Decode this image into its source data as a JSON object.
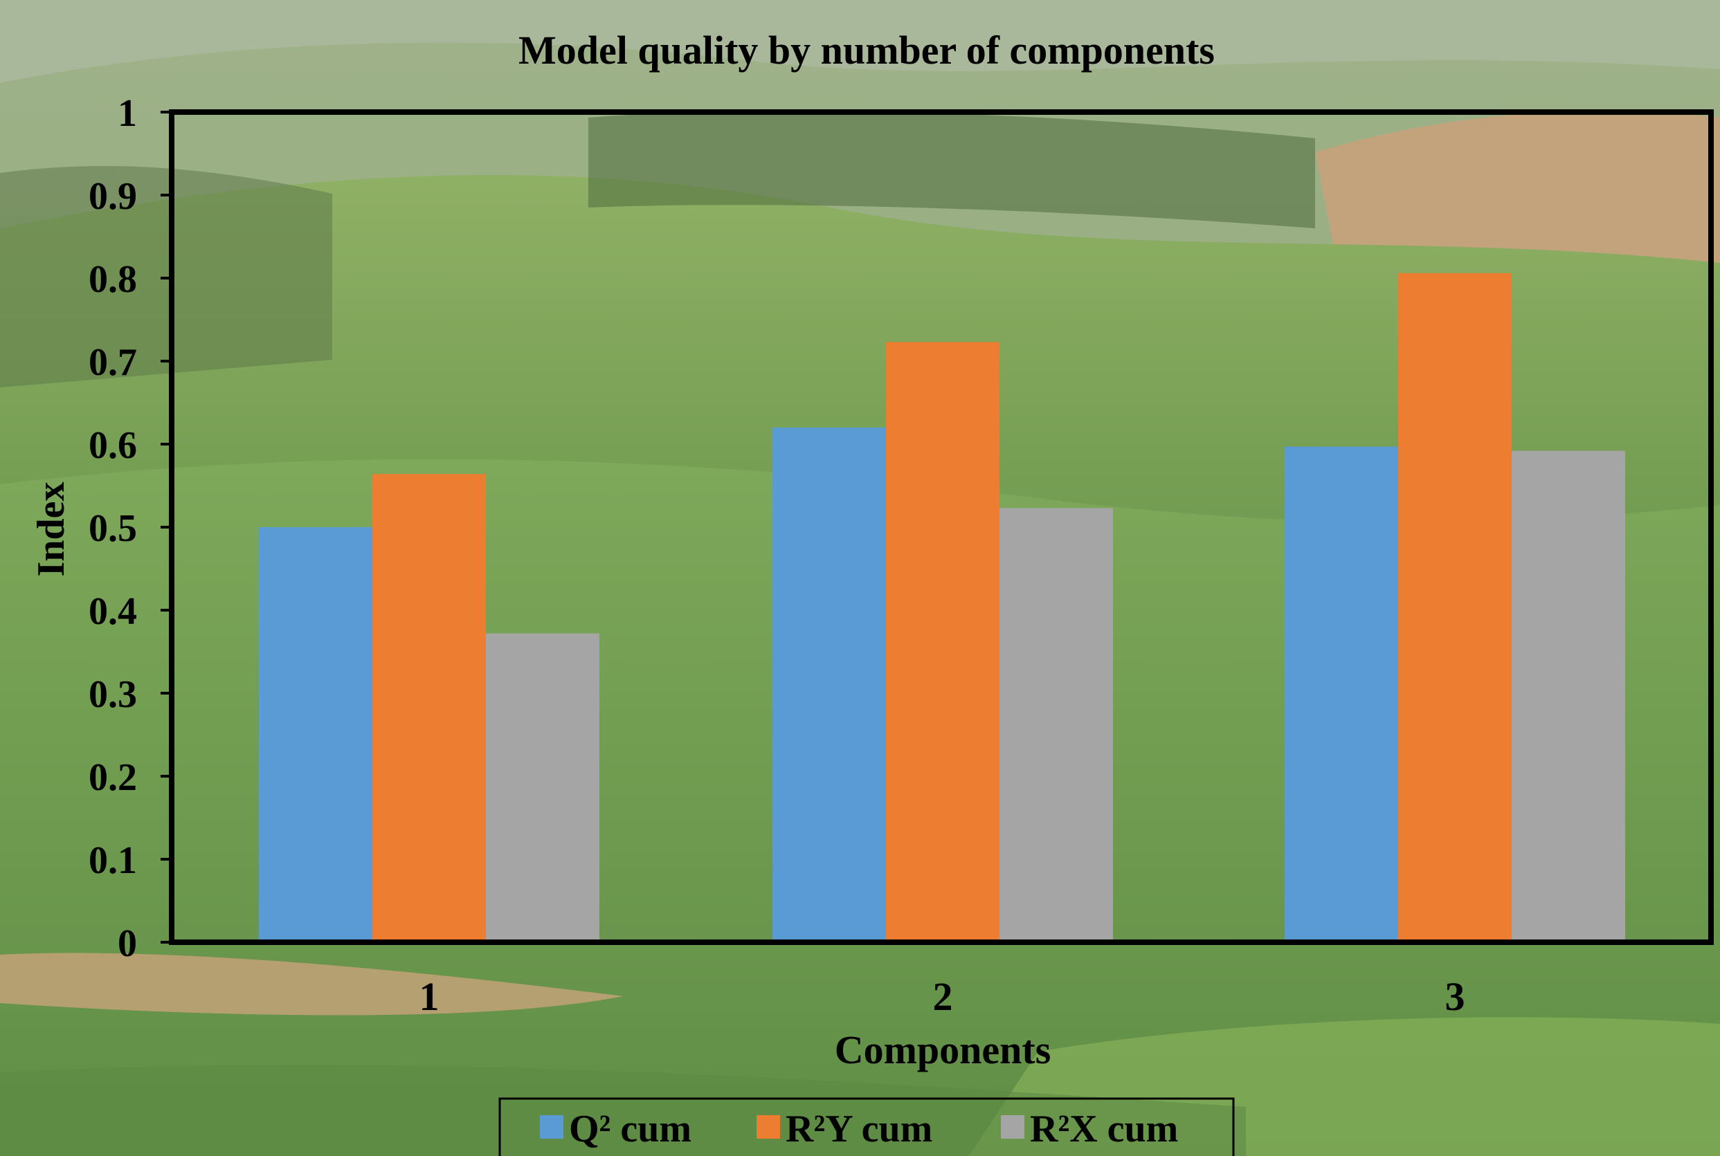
{
  "colors": {
    "q2_cum": "#5B9BD5",
    "r2y_cum": "#ED7D31",
    "r2x_cum": "#A5A5A5"
  },
  "chart_data": {
    "type": "bar",
    "title": "Model quality by number of components",
    "xlabel": "Components",
    "ylabel": "Index",
    "categories": [
      "1",
      "2",
      "3"
    ],
    "ylim": [
      0,
      1
    ],
    "yticks": [
      "0",
      "0.1",
      "0.2",
      "0.3",
      "0.4",
      "0.5",
      "0.6",
      "0.7",
      "0.8",
      "0.9",
      "1"
    ],
    "grid": false,
    "legend_position": "bottom",
    "series": [
      {
        "name": "Q² cum",
        "values": [
          0.5,
          0.62,
          0.597
        ]
      },
      {
        "name": "R²Y cum",
        "values": [
          0.564,
          0.723,
          0.806
        ]
      },
      {
        "name": "R²X cum",
        "values": [
          0.372,
          0.523,
          0.592
        ]
      }
    ]
  }
}
